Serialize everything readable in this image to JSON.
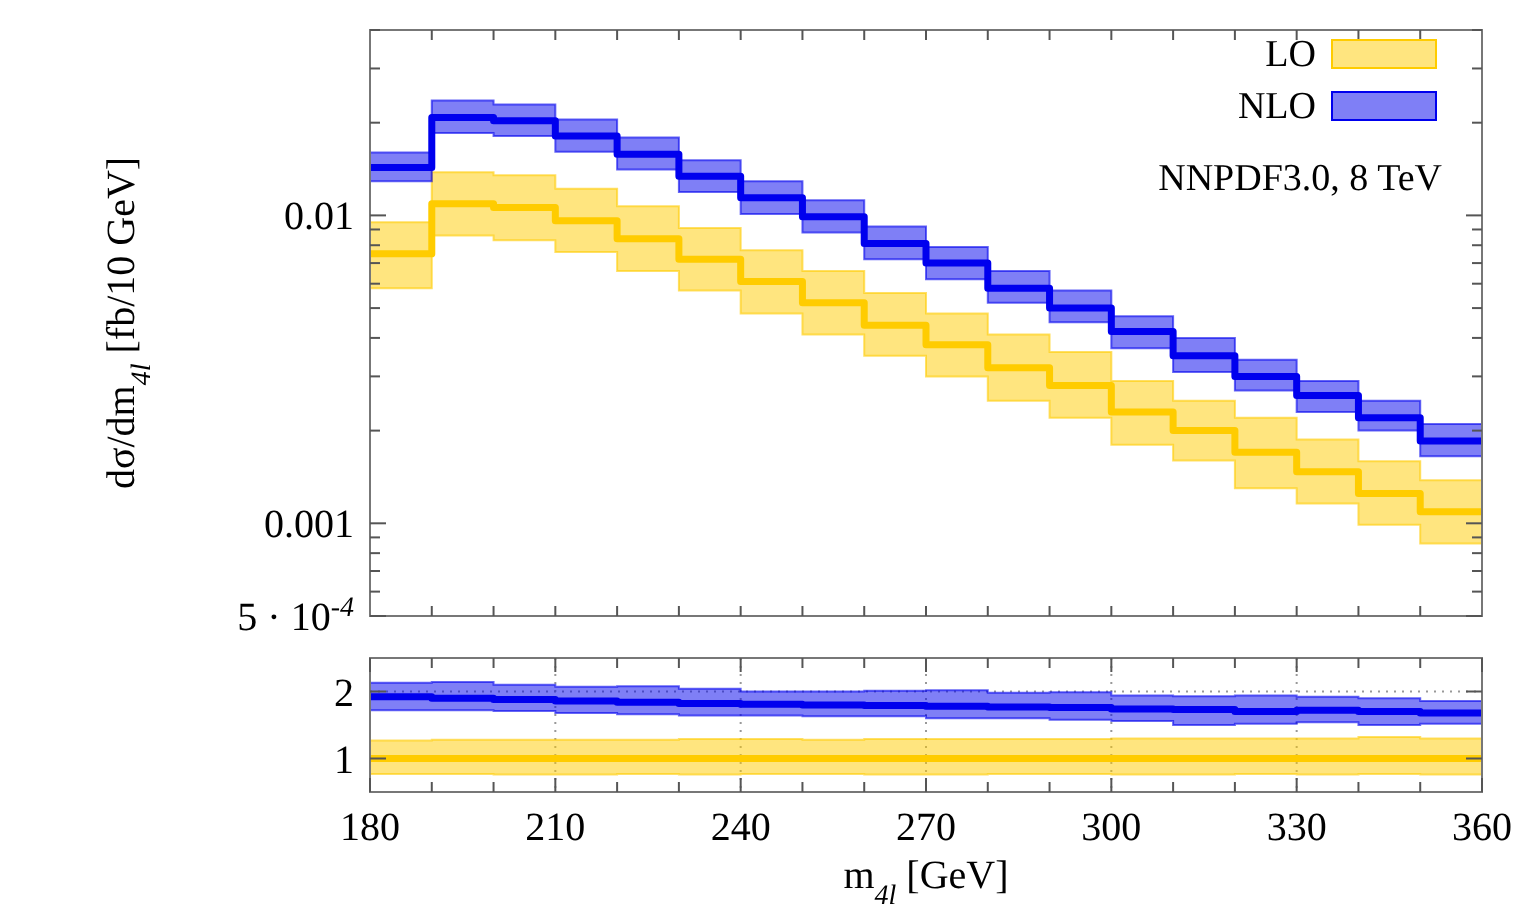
{
  "chart_data": [
    {
      "type": "step",
      "ylabel": "dσ/dm$_{4l}$  [fb/10 GeV]",
      "log": "y",
      "legend": "top right",
      "tick_labels": "y",
      "x": [
        180,
        190,
        200,
        210,
        220,
        230,
        240,
        250,
        260,
        270,
        280,
        290,
        300,
        310,
        320,
        330,
        340,
        350,
        360
      ],
      "xlim": [
        180,
        360
      ],
      "xticks": [
        {
          "value": 190,
          "label": null
        },
        {
          "value": 200,
          "label": null
        },
        {
          "value": 210,
          "label": null
        },
        {
          "value": 220,
          "label": null
        },
        {
          "value": 230,
          "label": null
        },
        {
          "value": 240,
          "label": null
        },
        {
          "value": 250,
          "label": null
        },
        {
          "value": 260,
          "label": null
        },
        {
          "value": 270,
          "label": null
        },
        {
          "value": 280,
          "label": null
        },
        {
          "value": 290,
          "label": null
        },
        {
          "value": 300,
          "label": null
        },
        {
          "value": 310,
          "label": null
        },
        {
          "value": 320,
          "label": null
        },
        {
          "value": 330,
          "label": null
        },
        {
          "value": 340,
          "label": null
        },
        {
          "value": 350,
          "label": null
        }
      ],
      "ylim": [
        0.0005,
        0.04
      ],
      "yticks": [
        {
          "value": 0.0005,
          "label": "5 · 10$^{-4}$"
        },
        {
          "value": 0.0006,
          "label": null
        },
        {
          "value": 0.0007,
          "label": null
        },
        {
          "value": 0.0008,
          "label": null
        },
        {
          "value": 0.0009,
          "label": null
        },
        0.001,
        {
          "value": 0.002,
          "label": null
        },
        {
          "value": 0.003,
          "label": null
        },
        {
          "value": 0.004,
          "label": null
        },
        {
          "value": 0.005,
          "label": null
        },
        {
          "value": 0.006,
          "label": null
        },
        {
          "value": 0.007,
          "label": null
        },
        {
          "value": 0.008,
          "label": null
        },
        {
          "value": 0.009,
          "label": null
        },
        0.01,
        {
          "value": 0.02,
          "label": null
        },
        {
          "value": 0.03,
          "label": null
        },
        {
          "value": 0.04,
          "label": null
        }
      ],
      "annotations": [
        "NNPDF3.0, 8 TeV"
      ],
      "series": [
        {
          "name": "LO",
          "color": "#ffcc00",
          "values": [
            0.0075,
            0.0109,
            0.0106,
            0.0096,
            0.0084,
            0.0072,
            0.0061,
            0.0052,
            0.0044,
            0.0038,
            0.0032,
            0.0028,
            0.0023,
            0.002,
            0.0017,
            0.00147,
            0.00125,
            0.00109,
            0.00109
          ],
          "lower": [
            0.0058,
            0.0086,
            0.0083,
            0.0076,
            0.0066,
            0.0057,
            0.0048,
            0.0041,
            0.0035,
            0.003,
            0.0025,
            0.0022,
            0.0018,
            0.0016,
            0.0013,
            0.00116,
            0.00099,
            0.00086,
            0.00086
          ],
          "upper": [
            0.0095,
            0.0138,
            0.0135,
            0.0122,
            0.0107,
            0.0091,
            0.0077,
            0.0066,
            0.0056,
            0.0048,
            0.0041,
            0.0036,
            0.0029,
            0.0025,
            0.0022,
            0.00187,
            0.00159,
            0.00138,
            0.00138
          ]
        },
        {
          "name": "NLO",
          "color": "#0000ee",
          "values": [
            0.0143,
            0.0208,
            0.0203,
            0.0181,
            0.0158,
            0.0134,
            0.0114,
            0.0099,
            0.0081,
            0.007,
            0.0058,
            0.005,
            0.0042,
            0.0035,
            0.003,
            0.0026,
            0.0022,
            0.00185,
            0.00185
          ],
          "lower": [
            0.0129,
            0.0185,
            0.0181,
            0.0161,
            0.0141,
            0.0119,
            0.0101,
            0.0088,
            0.0072,
            0.0062,
            0.0052,
            0.0045,
            0.0037,
            0.0031,
            0.0027,
            0.0023,
            0.002,
            0.00165,
            0.00165
          ],
          "upper": [
            0.016,
            0.0236,
            0.0229,
            0.0205,
            0.0179,
            0.0151,
            0.0129,
            0.0112,
            0.0092,
            0.0079,
            0.0066,
            0.0057,
            0.0047,
            0.004,
            0.0034,
            0.0029,
            0.0025,
            0.0021,
            0.0021
          ]
        }
      ]
    },
    {
      "type": "step",
      "xlabel": "m$_{4l}$ [GeV]",
      "grid": true,
      "x": [
        180,
        190,
        200,
        210,
        220,
        230,
        240,
        250,
        260,
        270,
        280,
        290,
        300,
        310,
        320,
        330,
        340,
        350,
        360
      ],
      "xlim": [
        180,
        360
      ],
      "xticks": [
        180,
        {
          "value": 190,
          "label": null
        },
        {
          "value": 200,
          "label": null
        },
        210,
        {
          "value": 220,
          "label": null
        },
        {
          "value": 230,
          "label": null
        },
        240,
        {
          "value": 250,
          "label": null
        },
        {
          "value": 260,
          "label": null
        },
        270,
        {
          "value": 280,
          "label": null
        },
        {
          "value": 290,
          "label": null
        },
        300,
        {
          "value": 310,
          "label": null
        },
        {
          "value": 320,
          "label": null
        },
        330,
        {
          "value": 340,
          "label": null
        },
        {
          "value": 350,
          "label": null
        },
        360
      ],
      "ylim": [
        0.5,
        2.5
      ],
      "yticks": [
        1,
        2
      ],
      "series": [
        {
          "color": "#ffcc00",
          "values": [
            1,
            1,
            1,
            1,
            1,
            1,
            1,
            1,
            1,
            1,
            1,
            1,
            1,
            1,
            1,
            1,
            1,
            1,
            1
          ],
          "lower": [
            0.77,
            0.77,
            0.76,
            0.76,
            0.77,
            0.76,
            0.77,
            0.77,
            0.76,
            0.76,
            0.77,
            0.77,
            0.76,
            0.76,
            0.77,
            0.76,
            0.77,
            0.76,
            0.76
          ],
          "upper": [
            1.27,
            1.28,
            1.28,
            1.28,
            1.28,
            1.29,
            1.29,
            1.28,
            1.29,
            1.29,
            1.29,
            1.29,
            1.3,
            1.3,
            1.3,
            1.3,
            1.32,
            1.3,
            1.3
          ]
        },
        {
          "color": "#0000ee",
          "values": [
            1.92,
            1.9,
            1.88,
            1.86,
            1.84,
            1.82,
            1.81,
            1.8,
            1.79,
            1.78,
            1.77,
            1.76,
            1.74,
            1.73,
            1.7,
            1.72,
            1.7,
            1.68,
            1.68
          ],
          "lower": [
            1.72,
            1.72,
            1.71,
            1.68,
            1.66,
            1.64,
            1.64,
            1.63,
            1.63,
            1.6,
            1.6,
            1.58,
            1.56,
            1.5,
            1.52,
            1.54,
            1.5,
            1.52,
            1.52
          ],
          "upper": [
            2.13,
            2.14,
            2.1,
            2.07,
            2.08,
            2.04,
            2.0,
            2.0,
            2.01,
            2.02,
            1.98,
            1.99,
            1.94,
            1.93,
            1.94,
            1.92,
            1.9,
            1.86,
            1.86
          ]
        }
      ]
    }
  ]
}
